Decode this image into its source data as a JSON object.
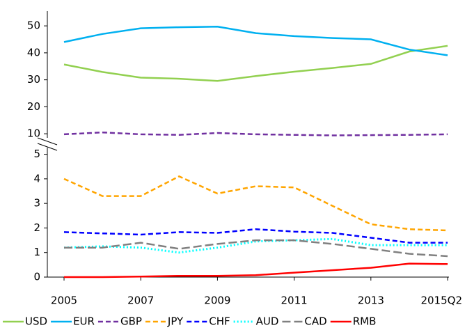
{
  "chart_data": {
    "type": "line",
    "categories": [
      "2005",
      null,
      "2007",
      null,
      "2009",
      null,
      "2011",
      null,
      "2013",
      null,
      "2015Q2"
    ],
    "ylim": [
      0,
      5.3
    ],
    "yticks": [
      0,
      1,
      2,
      3,
      4,
      5
    ],
    "y2lim": [
      9,
      52
    ],
    "y2ticks": [
      10,
      20,
      30,
      40,
      50
    ],
    "legend": "bottom",
    "series": [
      {
        "name": "USD",
        "color": "#92d050",
        "dash": "solid",
        "axis": "y2",
        "values": [
          35.7,
          32.9,
          30.8,
          30.4,
          29.6,
          31.4,
          33,
          34.4,
          35.9,
          40.5,
          42.6
        ]
      },
      {
        "name": "EUR",
        "color": "#00b0f0",
        "dash": "solid",
        "axis": "y2",
        "values": [
          44,
          47,
          49.1,
          49.5,
          49.7,
          47.3,
          46.2,
          45.5,
          45,
          41.2,
          39.1
        ]
      },
      {
        "name": "GBP",
        "color": "#7030a0",
        "dash": "dash",
        "axis": "y2",
        "values": [
          9.8,
          10.5,
          9.8,
          9.6,
          10.3,
          9.8,
          9.6,
          9.4,
          9.5,
          9.6,
          9.8
        ]
      },
      {
        "name": "JPY",
        "color": "#ffa500",
        "dash": "dash",
        "values": [
          4.0,
          3.3,
          3.3,
          4.1,
          3.4,
          3.7,
          3.65,
          2.9,
          2.15,
          1.95,
          1.9
        ]
      },
      {
        "name": "CHF",
        "color": "#0000ff",
        "dash": "dash",
        "values": [
          1.83,
          1.78,
          1.73,
          1.83,
          1.8,
          1.95,
          1.85,
          1.8,
          1.6,
          1.4,
          1.4
        ]
      },
      {
        "name": "AUD",
        "color": "#00ffff",
        "dash": "dot",
        "values": [
          1.2,
          1.25,
          1.2,
          1.0,
          1.2,
          1.45,
          1.5,
          1.55,
          1.3,
          1.3,
          1.3
        ]
      },
      {
        "name": "CAD",
        "color": "#808080",
        "dash": "longdash",
        "values": [
          1.2,
          1.2,
          1.4,
          1.15,
          1.35,
          1.5,
          1.5,
          1.35,
          1.15,
          0.95,
          0.85
        ]
      },
      {
        "name": "RMB",
        "color": "#ff0000",
        "dash": "solid",
        "values": [
          0,
          0,
          0.02,
          0.05,
          0.05,
          0.08,
          0.18,
          0.28,
          0.38,
          0.55,
          0.53
        ]
      }
    ]
  }
}
